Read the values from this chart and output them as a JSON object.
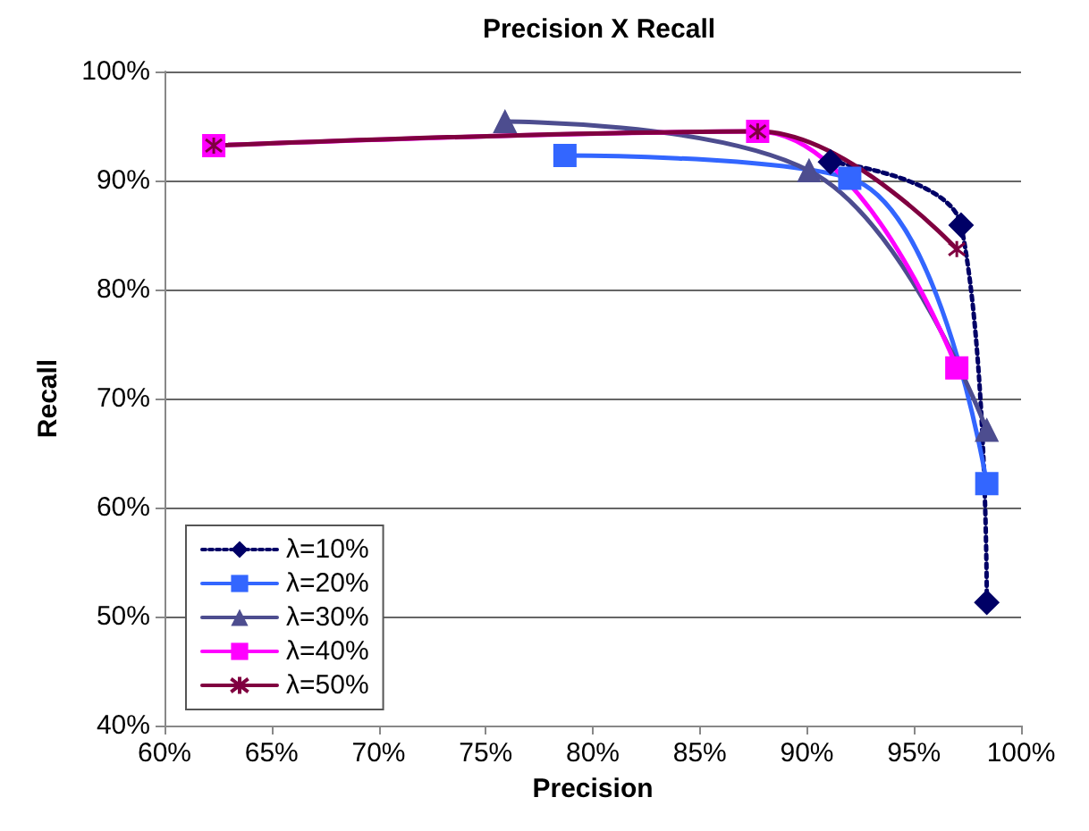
{
  "chart_data": {
    "type": "line",
    "title": "Precision X Recall",
    "xlabel": "Precision",
    "ylabel": "Recall",
    "xlim": [
      60,
      100
    ],
    "ylim": [
      40,
      100
    ],
    "xticks": [
      {
        "value": 60,
        "label": "60%"
      },
      {
        "value": 65,
        "label": "65%"
      },
      {
        "value": 70,
        "label": "70%"
      },
      {
        "value": 75,
        "label": "75%"
      },
      {
        "value": 80,
        "label": "80%"
      },
      {
        "value": 85,
        "label": "85%"
      },
      {
        "value": 90,
        "label": "90%"
      },
      {
        "value": 95,
        "label": "95%"
      },
      {
        "value": 100,
        "label": "100%"
      }
    ],
    "yticks": [
      {
        "value": 40,
        "label": "40%"
      },
      {
        "value": 50,
        "label": "50%"
      },
      {
        "value": 60,
        "label": "60%"
      },
      {
        "value": 70,
        "label": "70%"
      },
      {
        "value": 80,
        "label": "80%"
      },
      {
        "value": 90,
        "label": "90%"
      },
      {
        "value": 100,
        "label": "100%"
      }
    ],
    "grid": "y",
    "legend": "bottom left",
    "series": [
      {
        "name": "λ=10%",
        "color": "#000066",
        "marker": "diamond",
        "line_style": "dotted",
        "x": [
          91.1,
          97.2,
          98.4
        ],
        "values": [
          91.7,
          85.9,
          51.3
        ]
      },
      {
        "name": "λ=20%",
        "color": "#3366ff",
        "marker": "square",
        "line_style": "solid",
        "x": [
          78.7,
          92.0,
          98.4
        ],
        "values": [
          92.3,
          90.2,
          62.2
        ]
      },
      {
        "name": "λ=30%",
        "color": "#4d4d8f",
        "marker": "triangle",
        "line_style": "solid",
        "x": [
          75.9,
          90.1,
          98.4
        ],
        "values": [
          95.4,
          90.9,
          67.1
        ]
      },
      {
        "name": "λ=40%",
        "color": "#ff00ff",
        "marker": "square",
        "line_style": "solid",
        "x": [
          62.3,
          87.7,
          97.0
        ],
        "values": [
          93.2,
          94.5,
          72.8
        ]
      },
      {
        "name": "λ=50%",
        "color": "#800040",
        "marker": "cross",
        "line_style": "solid",
        "x": [
          62.3,
          87.7,
          97.0
        ],
        "values": [
          93.2,
          94.5,
          83.7
        ]
      }
    ]
  }
}
